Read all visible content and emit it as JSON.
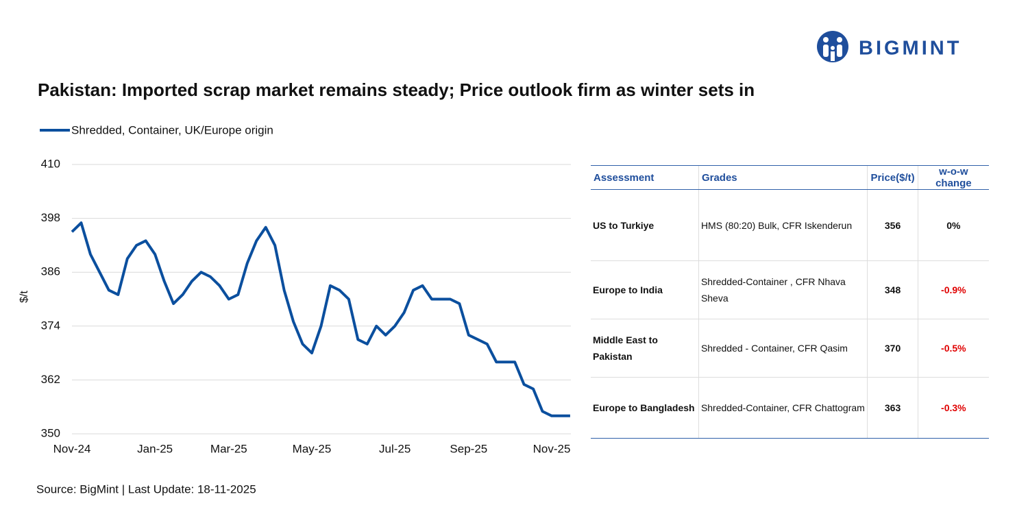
{
  "logo": {
    "text": "BIGMINT"
  },
  "chart_data": {
    "type": "line",
    "title": "Pakistan: Imported scrap market remains steady; Price outlook firm as winter sets in",
    "y_label": "$/t",
    "categories": [
      "Nov-24",
      null,
      null,
      null,
      null,
      null,
      null,
      null,
      null,
      "Jan-25",
      null,
      null,
      null,
      null,
      null,
      null,
      null,
      "Mar-25",
      null,
      null,
      null,
      null,
      null,
      null,
      null,
      null,
      "May-25",
      null,
      null,
      null,
      null,
      null,
      null,
      null,
      null,
      "Jul-25",
      null,
      null,
      null,
      null,
      null,
      null,
      null,
      "Sep-25",
      null,
      null,
      null,
      null,
      null,
      null,
      null,
      null,
      "Nov-25",
      null,
      null
    ],
    "series": [
      {
        "name": "Shredded, Container, UK/Europe origin",
        "color": "#0b4f9e",
        "values": [
          395,
          397,
          390,
          386,
          382,
          381,
          389,
          392,
          393,
          390,
          384,
          379,
          381,
          384,
          386,
          385,
          383,
          380,
          381,
          388,
          393,
          396,
          392,
          382,
          375,
          370,
          368,
          374,
          383,
          382,
          380,
          371,
          370,
          374,
          372,
          374,
          377,
          382,
          383,
          380,
          380,
          380,
          379,
          372,
          371,
          370,
          366,
          366,
          366,
          361,
          360,
          355,
          354,
          354,
          354
        ]
      }
    ],
    "ylim": [
      350,
      410
    ],
    "yticks": [
      350,
      362,
      374,
      386,
      398,
      410
    ],
    "grid": true,
    "legend": "top-left"
  },
  "table": {
    "header": [
      "Assessment",
      "Grades",
      "Price($/t)",
      "w-o-w change"
    ],
    "rows": [
      [
        "US to Turkiye",
        "HMS (80:20) Bulk, CFR Iskenderun",
        "356",
        "0%"
      ],
      [
        "Europe to India",
        "Shredded-Container , CFR Nhava Sheva",
        "348",
        "-0.9%"
      ],
      [
        "Middle East to Pakistan",
        "Shredded - Container, CFR Qasim",
        "370",
        "-0.5%"
      ],
      [
        "Europe to Bangladesh",
        "Shredded-Container, CFR Chattogram",
        "363",
        "-0.3%"
      ]
    ]
  },
  "source": "Source: BigMint | Last Update: 18-11-2025"
}
